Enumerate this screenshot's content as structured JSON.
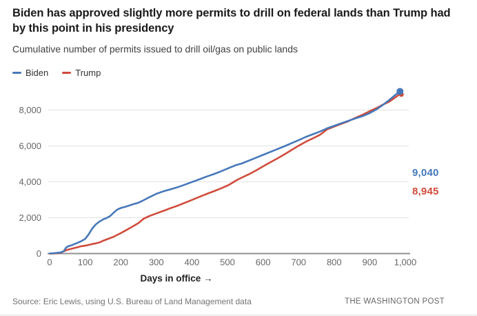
{
  "header": {
    "title": "Biden has approved slightly more permits to drill on federal lands than Trump had by this point in his presidency",
    "subtitle": "Cumulative number of permits issued to drill oil/gas on public lands"
  },
  "footer": {
    "source": "Source: Eric Lewis, using U.S. Bureau of Land Management data",
    "credit": "THE WASHINGTON POST"
  },
  "chart_data": {
    "type": "line",
    "title": "Biden has approved slightly more permits to drill on federal lands than Trump had by this point in his presidency",
    "subtitle": "Cumulative number of permits issued to drill oil/gas on public lands",
    "xlabel": "Days in office →",
    "ylabel": "",
    "xlim": [
      0,
      1000
    ],
    "ylim": [
      0,
      9350
    ],
    "grid": true,
    "legend_position": "top-left",
    "x_ticks": [
      "0",
      "100",
      "200",
      "300",
      "400",
      "500",
      "600",
      "700",
      "800",
      "900",
      "1,000"
    ],
    "x_tick_values": [
      0,
      100,
      200,
      300,
      400,
      500,
      600,
      700,
      800,
      900,
      1000
    ],
    "y_ticks": [
      "0",
      "2,000",
      "4,000",
      "6,000",
      "8,000"
    ],
    "y_tick_values": [
      0,
      2000,
      4000,
      6000,
      8000
    ],
    "x": [
      0,
      10,
      20,
      30,
      40,
      45,
      50,
      60,
      75,
      90,
      100,
      110,
      120,
      130,
      140,
      150,
      160,
      170,
      180,
      190,
      200,
      215,
      230,
      250,
      265,
      280,
      300,
      320,
      340,
      360,
      380,
      400,
      420,
      440,
      460,
      480,
      500,
      510,
      525,
      540,
      560,
      580,
      600,
      620,
      640,
      660,
      680,
      700,
      720,
      740,
      760,
      780,
      800,
      820,
      840,
      860,
      880,
      900,
      920,
      940,
      955,
      970,
      980,
      985
    ],
    "series": [
      {
        "name": "Biden",
        "color": "#4678b9",
        "end_label": "9,040",
        "end_value": 9040,
        "values": [
          0,
          15,
          35,
          60,
          130,
          300,
          390,
          450,
          570,
          700,
          820,
          1080,
          1400,
          1630,
          1780,
          1900,
          1980,
          2090,
          2280,
          2450,
          2540,
          2620,
          2720,
          2840,
          2980,
          3140,
          3330,
          3470,
          3580,
          3700,
          3840,
          3990,
          4130,
          4280,
          4420,
          4570,
          4740,
          4820,
          4940,
          5020,
          5180,
          5340,
          5500,
          5660,
          5820,
          5980,
          6150,
          6320,
          6500,
          6650,
          6800,
          6980,
          7120,
          7260,
          7400,
          7540,
          7660,
          7830,
          8050,
          8330,
          8560,
          8810,
          8970,
          9040
        ]
      },
      {
        "name": "Trump",
        "color": "#d04b3b",
        "end_label": "8,945",
        "end_value": 8945,
        "values": [
          0,
          5,
          15,
          40,
          130,
          170,
          210,
          260,
          340,
          410,
          440,
          480,
          530,
          570,
          620,
          710,
          790,
          860,
          940,
          1040,
          1140,
          1300,
          1470,
          1700,
          1950,
          2090,
          2240,
          2380,
          2530,
          2670,
          2830,
          2990,
          3150,
          3310,
          3460,
          3620,
          3790,
          3900,
          4080,
          4230,
          4420,
          4630,
          4860,
          5080,
          5300,
          5530,
          5770,
          6010,
          6230,
          6420,
          6620,
          6920,
          7080,
          7230,
          7380,
          7570,
          7740,
          7940,
          8120,
          8330,
          8470,
          8680,
          8820,
          8945
        ]
      }
    ]
  }
}
